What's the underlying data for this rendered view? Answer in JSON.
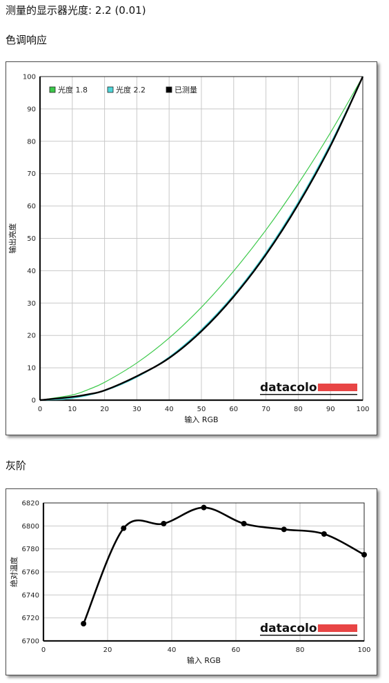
{
  "page": {
    "title": "测量的显示器光度: 2.2 (0.01)",
    "section_tone": "色调响应",
    "section_gray": "灰阶"
  },
  "brand": {
    "name": "datacolor",
    "color": "#e84545"
  },
  "colors": {
    "gamma18": "#3cc94a",
    "gamma22": "#4fd6d9",
    "measured": "#000000",
    "grid": "#c8c8c8"
  },
  "chart_data": [
    {
      "type": "line",
      "xlabel": "输入 RGB",
      "ylabel": "输出亮度",
      "xlim": [
        0,
        100
      ],
      "ylim": [
        0,
        100
      ],
      "xticks": [
        0,
        10,
        20,
        30,
        40,
        50,
        60,
        70,
        80,
        90,
        100
      ],
      "yticks": [
        0,
        10,
        20,
        30,
        40,
        50,
        60,
        70,
        80,
        90,
        100
      ],
      "grid": true,
      "legend_position": "top-left",
      "series": [
        {
          "name": "光度 1.8",
          "color": "#3cc94a",
          "x": [
            0,
            10,
            15,
            20,
            30,
            40,
            50,
            60,
            70,
            80,
            90,
            100
          ],
          "y": [
            0,
            1.6,
            3.3,
            5.5,
            11.5,
            19.2,
            28.7,
            39.9,
            52.6,
            66.9,
            82.7,
            100
          ]
        },
        {
          "name": "光度 2.2",
          "color": "#4fd6d9",
          "x": [
            0,
            10,
            20,
            30,
            40,
            50,
            60,
            70,
            80,
            90,
            100
          ],
          "y": [
            0,
            0.6,
            2.9,
            7.1,
            13.3,
            21.8,
            32.5,
            45.6,
            61.2,
            79.3,
            100
          ]
        },
        {
          "name": "已测量",
          "color": "#000000",
          "x": [
            0,
            10,
            15,
            20,
            30,
            40,
            50,
            60,
            70,
            80,
            90,
            100
          ],
          "y": [
            0,
            1.0,
            1.8,
            3.0,
            7.4,
            13.0,
            21.3,
            32.0,
            45.0,
            60.5,
            78.6,
            100
          ]
        }
      ]
    },
    {
      "type": "line",
      "xlabel": "输入 RGB",
      "ylabel": "绝对温度",
      "xlim": [
        0,
        100
      ],
      "ylim": [
        6700,
        6820
      ],
      "xticks": [
        0,
        20,
        40,
        60,
        80,
        100
      ],
      "yticks": [
        6700,
        6720,
        6740,
        6760,
        6780,
        6800,
        6820
      ],
      "grid": true,
      "series": [
        {
          "name": "",
          "x": [
            12.5,
            25,
            37.5,
            50,
            62.5,
            75,
            87.5,
            100
          ],
          "y": [
            6715,
            6798,
            6802,
            6816,
            6802,
            6797,
            6793,
            6775
          ]
        }
      ]
    }
  ]
}
